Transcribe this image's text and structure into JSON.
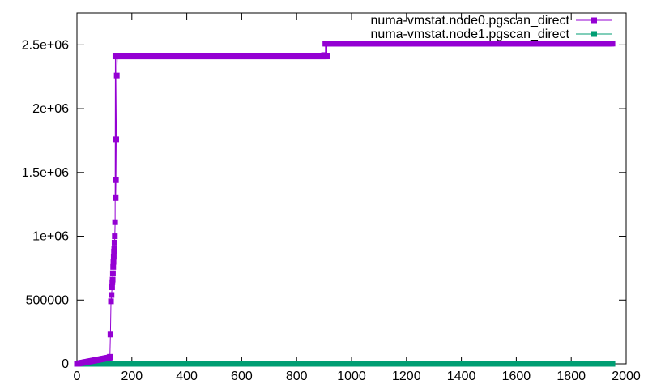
{
  "chart_data": {
    "type": "line",
    "title": "",
    "xlabel": "",
    "ylabel": "",
    "xlim": [
      0,
      2000
    ],
    "ylim": [
      0,
      2750000
    ],
    "x_ticks": [
      0,
      200,
      400,
      600,
      800,
      1000,
      1200,
      1400,
      1600,
      1800,
      2000
    ],
    "x_tick_labels": [
      "0",
      "200",
      "400",
      "600",
      "800",
      "1000",
      "1200",
      "1400",
      "1600",
      "1800",
      "2000"
    ],
    "y_ticks": [
      0,
      500000,
      1000000,
      1500000,
      2000000,
      2500000
    ],
    "y_tick_labels": [
      "0",
      "500000",
      "1e+06",
      "1.5e+06",
      "2e+06",
      "2.5e+06"
    ],
    "grid": false,
    "legend_position": "top-right",
    "series": [
      {
        "name": "numa-vmstat.node0.pgscan_direct",
        "color": "#9400d3",
        "marker": "square",
        "segments": [
          {
            "from": 0,
            "to": 120,
            "y_start": 0,
            "y_end": 50000,
            "step": 2
          },
          {
            "from": 140,
            "to": 910,
            "y": 2410000,
            "step": 5
          },
          {
            "from": 905,
            "to": 1950,
            "y": 2510000,
            "step": 5
          }
        ],
        "points": [
          [
            120,
            55000
          ],
          [
            122,
            230000
          ],
          [
            124,
            490000
          ],
          [
            126,
            540000
          ],
          [
            128,
            600000
          ],
          [
            129,
            640000
          ],
          [
            130,
            660000
          ],
          [
            131,
            710000
          ],
          [
            132,
            760000
          ],
          [
            133,
            800000
          ],
          [
            134,
            840000
          ],
          [
            135,
            880000
          ],
          [
            136,
            900000
          ],
          [
            137,
            950000
          ],
          [
            138,
            1000000
          ],
          [
            139,
            1110000
          ],
          [
            141,
            1300000
          ],
          [
            142,
            1440000
          ],
          [
            143,
            1760000
          ],
          [
            145,
            2260000
          ],
          [
            147,
            2410000
          ],
          [
            900,
            2420000
          ],
          [
            905,
            2510000
          ]
        ]
      },
      {
        "name": "numa-vmstat.node1.pgscan_direct",
        "color": "#009e73",
        "marker": "square",
        "segments": [
          {
            "from": 0,
            "to": 1950,
            "y": 0,
            "step": 5
          }
        ],
        "points": []
      }
    ]
  }
}
